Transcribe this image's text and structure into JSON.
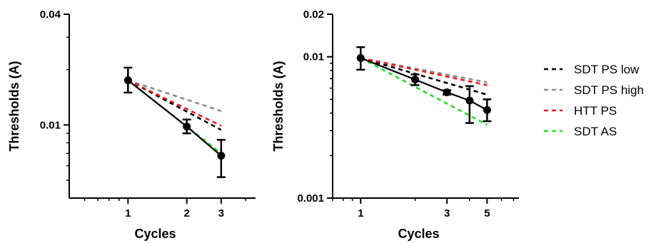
{
  "chart_data": [
    {
      "type": "line",
      "xlabel": "Cycles",
      "ylabel": "Thresholds (A)",
      "x_scale": "log",
      "y_scale": "log",
      "xlim": [
        0.5,
        4.5
      ],
      "ylim": [
        0.004,
        0.04
      ],
      "x_tick_labels": [
        "1",
        "2",
        "3"
      ],
      "x_ticks": [
        1,
        2,
        3
      ],
      "y_tick_labels": [
        "0.01",
        "0.04"
      ],
      "y_ticks": [
        0.01,
        0.04
      ],
      "measured": {
        "x": [
          1,
          2,
          3
        ],
        "y": [
          0.0175,
          0.0098,
          0.0068
        ],
        "err_low": [
          0.015,
          0.009,
          0.0052
        ],
        "err_high": [
          0.0205,
          0.0107,
          0.0083
        ]
      },
      "series": [
        {
          "name": "SDT PS low",
          "x": [
            1,
            3
          ],
          "y": [
            0.0175,
            0.0094
          ]
        },
        {
          "name": "SDT PS high",
          "x": [
            1,
            3
          ],
          "y": [
            0.0175,
            0.0119
          ]
        },
        {
          "name": "HTT PS",
          "x": [
            1,
            3
          ],
          "y": [
            0.0175,
            0.0099
          ]
        },
        {
          "name": "SDT AS",
          "x": [
            1,
            3
          ],
          "y": [
            0.0175,
            0.007
          ]
        }
      ]
    },
    {
      "type": "line",
      "xlabel": "Cycles",
      "ylabel": "Thresholds (A)",
      "x_scale": "log",
      "y_scale": "log",
      "xlim": [
        0.7,
        7.5
      ],
      "ylim": [
        0.001,
        0.02
      ],
      "x_tick_labels": [
        "1",
        "3",
        "5"
      ],
      "x_ticks": [
        1,
        3,
        5
      ],
      "y_tick_labels": [
        "0.001",
        "0.01",
        "0.02"
      ],
      "y_ticks": [
        0.001,
        0.01,
        0.02
      ],
      "measured": {
        "x": [
          1,
          2,
          3,
          4,
          5
        ],
        "y": [
          0.0098,
          0.0069,
          0.0056,
          0.0049,
          0.0042
        ],
        "err_low": [
          0.0081,
          0.0063,
          0.0054,
          0.0034,
          0.0035
        ],
        "err_high": [
          0.0117,
          0.0075,
          0.0058,
          0.0062,
          0.005
        ]
      },
      "series": [
        {
          "name": "SDT PS low",
          "x": [
            1,
            5
          ],
          "y": [
            0.0098,
            0.0054
          ]
        },
        {
          "name": "SDT PS high",
          "x": [
            1,
            5
          ],
          "y": [
            0.0098,
            0.0066
          ]
        },
        {
          "name": "HTT PS",
          "x": [
            1,
            5
          ],
          "y": [
            0.0098,
            0.0063
          ]
        },
        {
          "name": "SDT AS",
          "x": [
            1,
            5
          ],
          "y": [
            0.0098,
            0.0033
          ]
        }
      ]
    }
  ],
  "colors": {
    "SDT PS low": "#000000",
    "SDT PS high": "#8c8c8c",
    "HTT PS": "#e8191a",
    "SDT AS": "#22dd22",
    "measured": "#000000"
  },
  "legend": {
    "position": "right",
    "items": [
      "SDT PS low",
      "SDT PS high",
      "HTT PS",
      "SDT AS"
    ]
  }
}
